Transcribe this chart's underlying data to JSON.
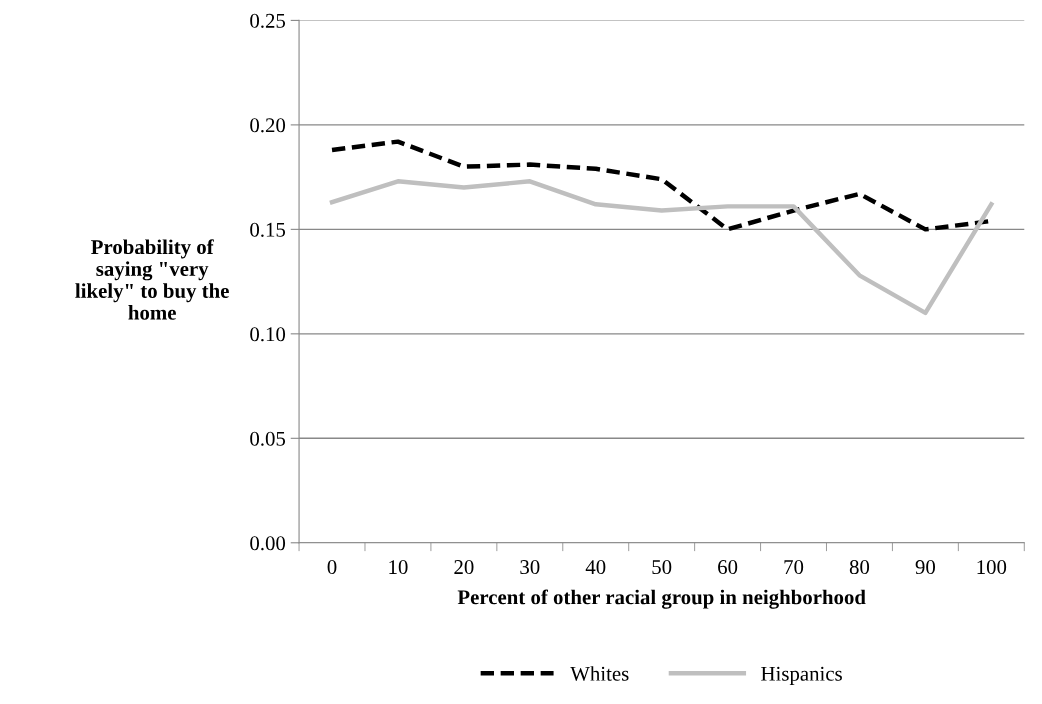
{
  "chart_data": {
    "type": "line",
    "xlabel": "Percent of other racial group in neighborhood",
    "ylabel": "Probability of\nsaying \"very\nlikely\" to buy the\nhome",
    "categories": [
      "0",
      "10",
      "20",
      "30",
      "40",
      "50",
      "60",
      "70",
      "80",
      "90",
      "100"
    ],
    "series": [
      {
        "name": "Whites",
        "color": "#000000",
        "line_style": "dashed",
        "values": [
          0.188,
          0.192,
          0.18,
          0.181,
          0.179,
          0.174,
          0.15,
          0.159,
          0.167,
          0.15,
          0.154
        ]
      },
      {
        "name": "Hispanics",
        "color": "#bfbfbf",
        "line_style": "solid",
        "values": [
          0.163,
          0.173,
          0.17,
          0.173,
          0.162,
          0.159,
          0.161,
          0.161,
          0.128,
          0.11,
          0.162
        ]
      }
    ],
    "ylim": [
      0,
      0.25
    ],
    "yticks": [
      {
        "value": 0,
        "label": "0.00"
      },
      {
        "value": 0.05,
        "label": "0.05"
      },
      {
        "value": 0.1,
        "label": "0.10"
      },
      {
        "value": 0.15,
        "label": "0.15"
      },
      {
        "value": 0.2,
        "label": "0.20"
      },
      {
        "value": 0.25,
        "label": "0.25"
      }
    ],
    "grid": "y",
    "legend": "bottom",
    "marker": "none"
  }
}
